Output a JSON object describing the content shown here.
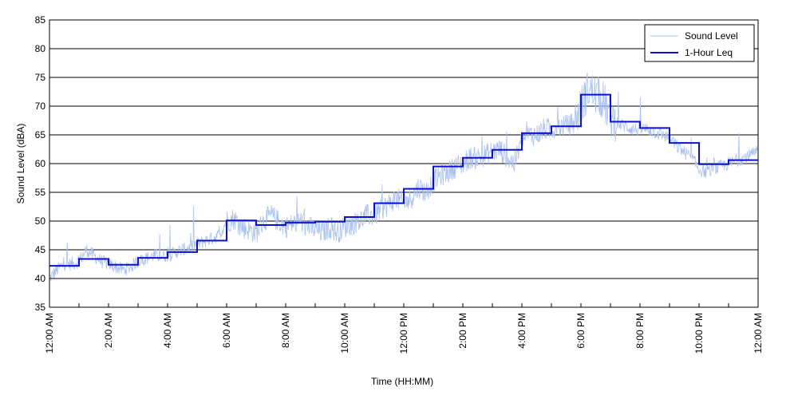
{
  "chart_data": {
    "type": "line",
    "xlabel": "Time (HH:MM)",
    "ylabel": "Sound Level (dBA)",
    "xlim": [
      0,
      24
    ],
    "ylim": [
      35,
      85
    ],
    "y_ticks": [
      35,
      40,
      45,
      50,
      55,
      60,
      65,
      70,
      75,
      80,
      85
    ],
    "x_ticks": [
      0,
      2,
      4,
      6,
      8,
      10,
      12,
      14,
      16,
      18,
      20,
      22,
      24
    ],
    "x_tick_labels": [
      "12:00 AM",
      "2:00 AM",
      "4:00 AM",
      "6:00 AM",
      "8:00 AM",
      "10:00 AM",
      "12:00 PM",
      "2:00 PM",
      "4:00 PM",
      "6:00 PM",
      "8:00 PM",
      "10:00 PM",
      "12:00 AM"
    ],
    "x_minor_ticks": [
      1,
      3,
      5,
      7,
      9,
      11,
      13,
      15,
      17,
      19,
      21,
      23
    ],
    "grid": "horizontal",
    "legend_position": "top-right",
    "series": [
      {
        "name": "Sound Level",
        "color": "#a9c1f2",
        "style": "thin-noisy-line",
        "x": [
          0,
          0.25,
          0.5,
          0.75,
          1,
          1.25,
          1.5,
          1.75,
          2,
          2.25,
          2.5,
          2.75,
          3,
          3.25,
          3.5,
          3.75,
          4,
          4.25,
          4.5,
          4.75,
          5,
          5.25,
          5.5,
          5.75,
          6,
          6.25,
          6.5,
          6.75,
          7,
          7.25,
          7.5,
          7.75,
          8,
          8.25,
          8.5,
          8.75,
          9,
          9.25,
          9.5,
          9.75,
          10,
          10.25,
          10.5,
          10.75,
          11,
          11.25,
          11.5,
          11.75,
          12,
          12.25,
          12.5,
          12.75,
          13,
          13.25,
          13.5,
          13.75,
          14,
          14.25,
          14.5,
          14.75,
          15,
          15.25,
          15.5,
          15.75,
          16,
          16.25,
          16.5,
          16.75,
          17,
          17.25,
          17.5,
          17.75,
          18,
          18.25,
          18.5,
          18.75,
          19,
          19.25,
          19.5,
          19.75,
          20,
          20.25,
          20.5,
          20.75,
          21,
          21.25,
          21.5,
          21.75,
          22,
          22.25,
          22.5,
          22.75,
          23,
          23.25,
          23.5,
          23.75,
          24
        ],
        "values": [
          40,
          41.5,
          42.5,
          42.5,
          43,
          45,
          44,
          43,
          42.5,
          42,
          41.5,
          42,
          43,
          43.5,
          44,
          44,
          44,
          44.5,
          45,
          45.5,
          46,
          46.5,
          47,
          47.5,
          50,
          50.5,
          49,
          48.5,
          48,
          50,
          51,
          50,
          49,
          49.5,
          50,
          49,
          48.5,
          48,
          49,
          48,
          49,
          49.5,
          50,
          51,
          51,
          52,
          53,
          54,
          53,
          54,
          56,
          55,
          57,
          58,
          58.5,
          59.5,
          60,
          61,
          61,
          61.5,
          62,
          62.5,
          61,
          60,
          64,
          65,
          65,
          66,
          66,
          66.5,
          66.5,
          67,
          70,
          73,
          72,
          71,
          68,
          67,
          66.5,
          66,
          66,
          66,
          65.5,
          65,
          64.5,
          63,
          62,
          61,
          59,
          58.5,
          59,
          59.5,
          60,
          60.5,
          61,
          61.5,
          62
        ]
      },
      {
        "name": "1-Hour Leq",
        "color": "#0a10d6",
        "style": "step",
        "hours": [
          0,
          1,
          2,
          3,
          4,
          5,
          6,
          7,
          8,
          9,
          10,
          11,
          12,
          13,
          14,
          15,
          16,
          17,
          18,
          19,
          20,
          21,
          22,
          23
        ],
        "values": [
          42.2,
          43.4,
          42.4,
          43.6,
          44.6,
          46.6,
          50.1,
          49.3,
          49.7,
          49.9,
          50.7,
          53.1,
          55.6,
          59.5,
          61.0,
          62.4,
          65.3,
          66.5,
          72.0,
          67.3,
          66.2,
          63.6,
          59.9,
          60.6
        ]
      }
    ]
  }
}
